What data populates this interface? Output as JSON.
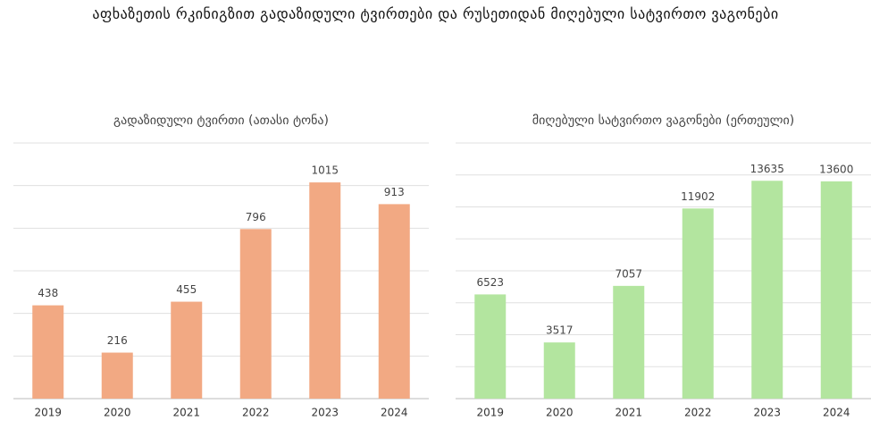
{
  "title": "აფხაზეთის რკინიგზით გადაზიდული ტვირთები და რუსეთიდან მიღებული სატვირთო ვაგონები",
  "chart_data": [
    {
      "type": "bar",
      "title": "გადაზიდული ტვირთი (ათასი ტონა)",
      "categories": [
        "2019",
        "2020",
        "2021",
        "2022",
        "2023",
        "2024"
      ],
      "values": [
        438,
        216,
        455,
        796,
        1015,
        913
      ],
      "color": "#f2a983",
      "ylim": [
        0,
        1200
      ],
      "yticks": [
        0,
        200,
        400,
        600,
        800,
        1000,
        1200
      ],
      "grid": true
    },
    {
      "type": "bar",
      "title": "მიღებული სატვირთო ვაგონები (ერთეული)",
      "categories": [
        "2019",
        "2020",
        "2021",
        "2022",
        "2023",
        "2024"
      ],
      "values": [
        6523,
        3517,
        7057,
        11902,
        13635,
        13600
      ],
      "color": "#b3e59f",
      "ylim": [
        0,
        16000
      ],
      "yticks": [
        0,
        2000,
        4000,
        6000,
        8000,
        10000,
        12000,
        14000,
        16000
      ],
      "grid": true
    }
  ]
}
